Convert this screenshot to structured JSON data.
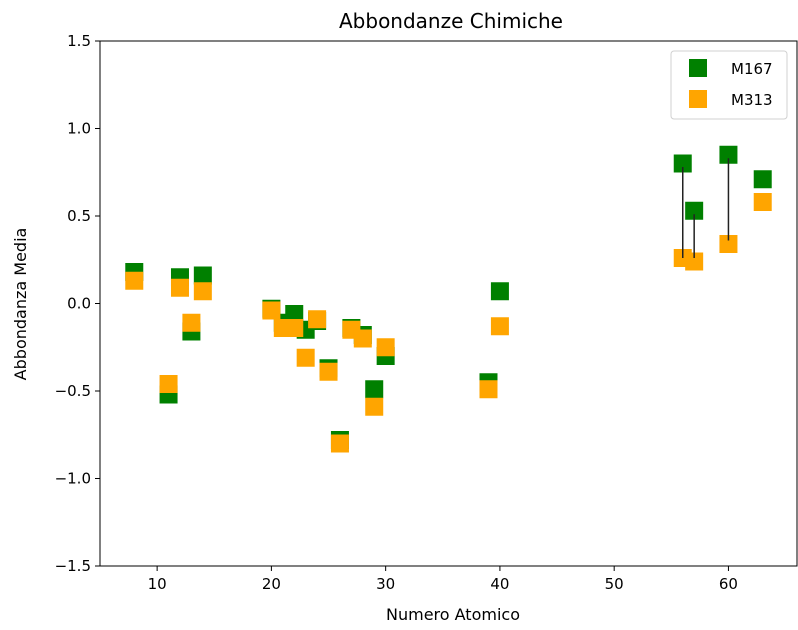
{
  "chart_data": {
    "type": "scatter",
    "title": "Abbondanze Chimiche",
    "xlabel": "Numero Atomico",
    "ylabel": "Abbondanza Media",
    "xlim": [
      5,
      66
    ],
    "ylim": [
      -1.5,
      1.5
    ],
    "xticks": [
      10,
      20,
      30,
      40,
      50,
      60
    ],
    "xtick_labels": [
      "10",
      "20",
      "30",
      "40",
      "50",
      "60"
    ],
    "yticks": [
      -1.5,
      -1.0,
      -0.5,
      0.0,
      0.5,
      1.0,
      1.5
    ],
    "ytick_labels": [
      "−1.5",
      "−1.0",
      "−0.5",
      "0.0",
      "0.5",
      "1.0",
      "1.5"
    ],
    "grid": false,
    "legend_position": "top-right",
    "series": [
      {
        "name": "M167",
        "color": "#008000",
        "marker": "square",
        "points": [
          {
            "x": 8,
            "y": 0.18
          },
          {
            "x": 11,
            "y": -0.52
          },
          {
            "x": 12,
            "y": 0.15
          },
          {
            "x": 13,
            "y": -0.16
          },
          {
            "x": 14,
            "y": 0.16
          },
          {
            "x": 20,
            "y": -0.03
          },
          {
            "x": 21,
            "y": -0.11
          },
          {
            "x": 22,
            "y": -0.06
          },
          {
            "x": 23,
            "y": -0.15
          },
          {
            "x": 24,
            "y": -0.1
          },
          {
            "x": 25,
            "y": -0.37
          },
          {
            "x": 26,
            "y": -0.78
          },
          {
            "x": 27,
            "y": -0.14
          },
          {
            "x": 28,
            "y": -0.18
          },
          {
            "x": 29,
            "y": -0.49
          },
          {
            "x": 30,
            "y": -0.3
          },
          {
            "x": 39,
            "y": -0.45
          },
          {
            "x": 40,
            "y": 0.07
          },
          {
            "x": 56,
            "y": 0.8
          },
          {
            "x": 57,
            "y": 0.53
          },
          {
            "x": 60,
            "y": 0.85
          },
          {
            "x": 63,
            "y": 0.71
          }
        ]
      },
      {
        "name": "M313",
        "color": "#FFA500",
        "marker": "square",
        "points": [
          {
            "x": 8,
            "y": 0.13
          },
          {
            "x": 11,
            "y": -0.46
          },
          {
            "x": 12,
            "y": 0.09
          },
          {
            "x": 13,
            "y": -0.11
          },
          {
            "x": 14,
            "y": 0.07
          },
          {
            "x": 20,
            "y": -0.04
          },
          {
            "x": 21,
            "y": -0.14
          },
          {
            "x": 22,
            "y": -0.14
          },
          {
            "x": 23,
            "y": -0.31
          },
          {
            "x": 24,
            "y": -0.09
          },
          {
            "x": 25,
            "y": -0.39
          },
          {
            "x": 26,
            "y": -0.8
          },
          {
            "x": 27,
            "y": -0.15
          },
          {
            "x": 28,
            "y": -0.2
          },
          {
            "x": 29,
            "y": -0.59
          },
          {
            "x": 30,
            "y": -0.25
          },
          {
            "x": 39,
            "y": -0.49
          },
          {
            "x": 40,
            "y": -0.13
          },
          {
            "x": 56,
            "y": 0.26
          },
          {
            "x": 57,
            "y": 0.24
          },
          {
            "x": 60,
            "y": 0.34
          },
          {
            "x": 63,
            "y": 0.58
          }
        ]
      }
    ],
    "connectors": [
      {
        "x": 56,
        "y1": 0.26,
        "y2": 0.78
      },
      {
        "x": 57,
        "y1": 0.26,
        "y2": 0.51
      },
      {
        "x": 60,
        "y1": 0.36,
        "y2": 0.83
      }
    ]
  }
}
